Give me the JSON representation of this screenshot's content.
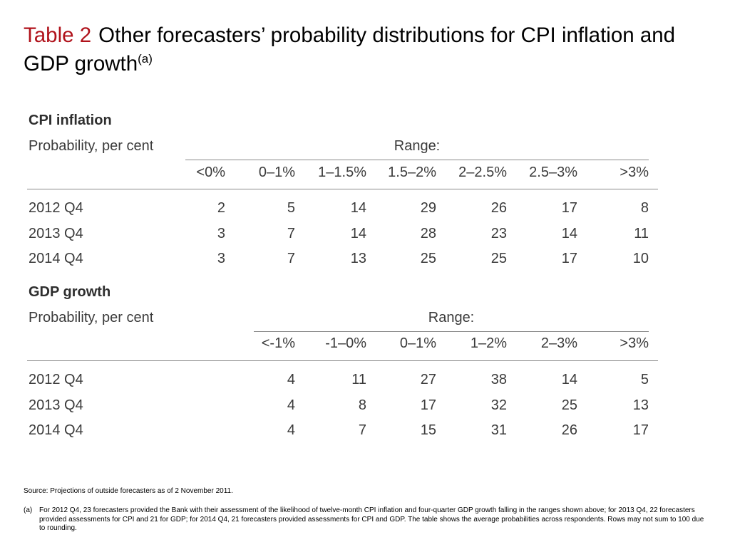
{
  "title": {
    "number": "Table 2",
    "text": "Other forecasters’ probability distributions for CPI inflation and GDP growth",
    "footnote_mark": "(a)"
  },
  "cpi": {
    "heading": "CPI inflation",
    "subheading": "Probability, per cent",
    "range_label": "Range:",
    "columns": [
      "<0%",
      "0–1%",
      "1–1.5%",
      "1.5–2%",
      "2–2.5%",
      "2.5–3%",
      ">3%"
    ],
    "rows": [
      {
        "label": "2012 Q4",
        "values": [
          "2",
          "5",
          "14",
          "29",
          "26",
          "17",
          "8"
        ]
      },
      {
        "label": "2013 Q4",
        "values": [
          "3",
          "7",
          "14",
          "28",
          "23",
          "14",
          "11"
        ]
      },
      {
        "label": "2014 Q4",
        "values": [
          "3",
          "7",
          "13",
          "25",
          "25",
          "17",
          "10"
        ]
      }
    ]
  },
  "gdp": {
    "heading": "GDP growth",
    "subheading": "Probability, per cent",
    "range_label": "Range:",
    "columns": [
      "<-1%",
      "-1–0%",
      "0–1%",
      "1–2%",
      "2–3%",
      ">3%"
    ],
    "rows": [
      {
        "label": "2012 Q4",
        "values": [
          "4",
          "11",
          "27",
          "38",
          "14",
          "5"
        ]
      },
      {
        "label": "2013 Q4",
        "values": [
          "4",
          "8",
          "17",
          "32",
          "25",
          "13"
        ]
      },
      {
        "label": "2014 Q4",
        "values": [
          "4",
          "7",
          "15",
          "31",
          "26",
          "17"
        ]
      }
    ]
  },
  "source": "Source:  Projections of outside forecasters as of 2 November 2011.",
  "note": {
    "mark": "(a)",
    "text": "For 2012 Q4, 23 forecasters provided the Bank with their assessment of the likelihood of twelve-month CPI inflation and four-quarter GDP growth falling in the ranges shown above;  for 2013 Q4, 22 forecasters provided assessments for CPI and 21 for GDP;  for 2014 Q4, 21 forecasters provided assessments for CPI and GDP.  The table shows the average probabilities across respondents.  Rows may not sum to 100 due to rounding."
  }
}
